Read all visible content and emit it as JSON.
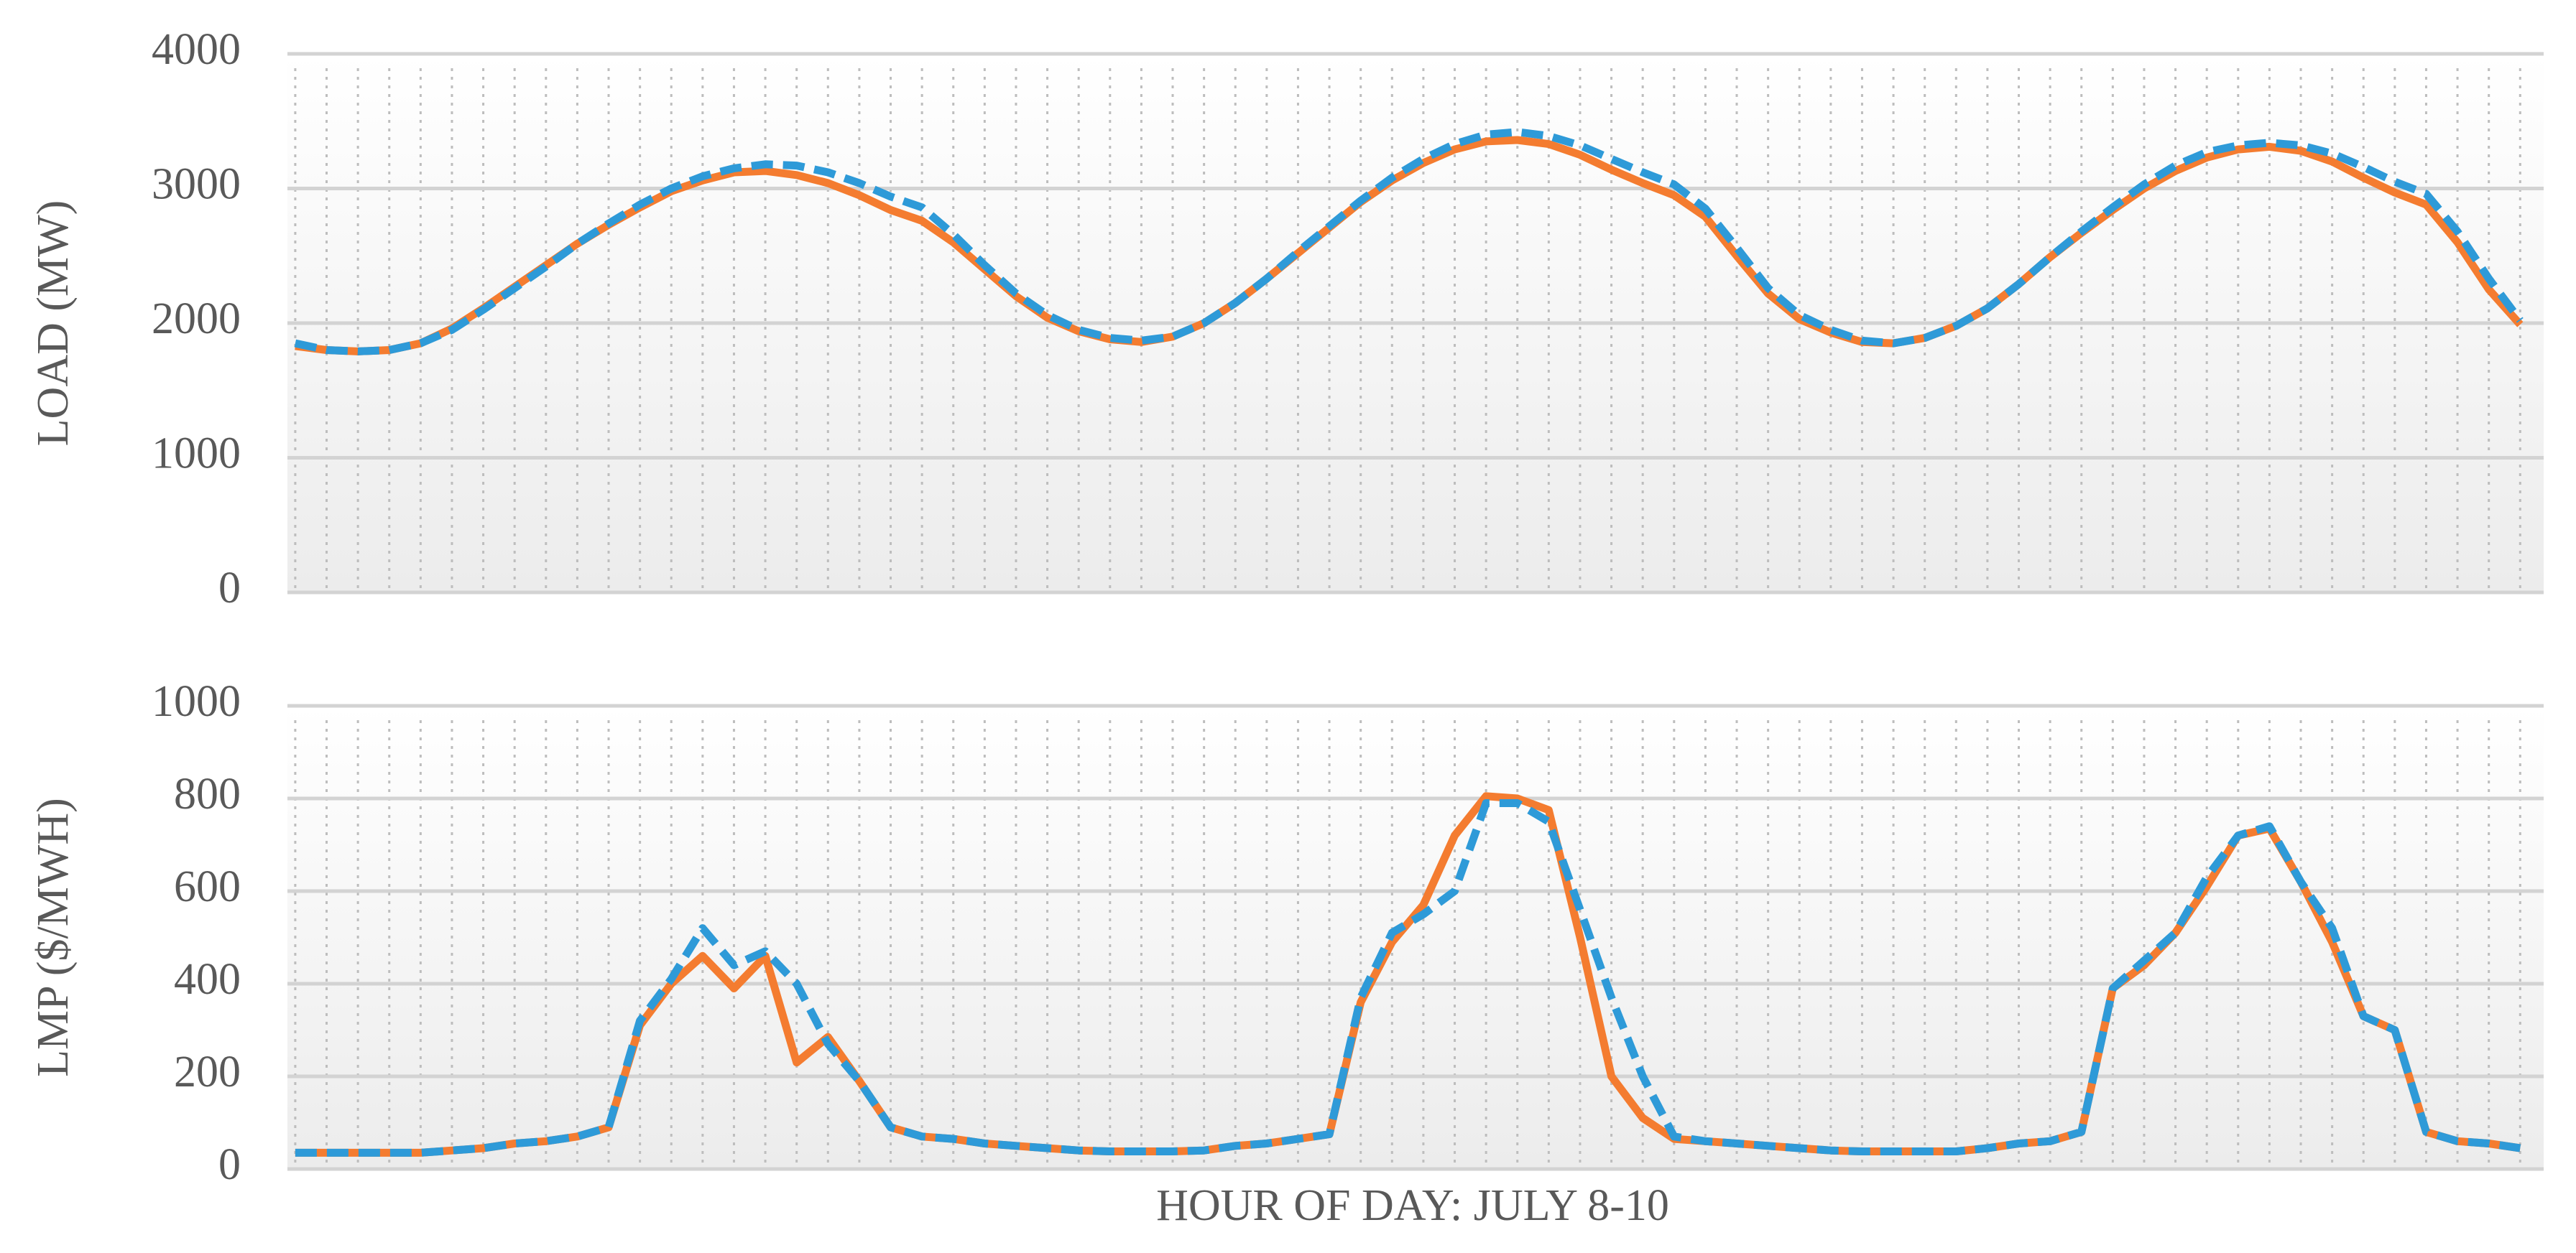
{
  "chart_data": [
    {
      "type": "line",
      "ylabel": "LOAD (MW)",
      "ylim": [
        0,
        4000
      ],
      "yticks": [
        0,
        1000,
        2000,
        3000,
        4000
      ],
      "grid": true,
      "series": [
        {
          "color": "#f47c30",
          "dash": false,
          "values": [
            1830,
            1800,
            1790,
            1800,
            1850,
            1960,
            2110,
            2270,
            2430,
            2590,
            2730,
            2860,
            2980,
            3060,
            3120,
            3130,
            3100,
            3040,
            2950,
            2840,
            2760,
            2600,
            2400,
            2200,
            2040,
            1940,
            1880,
            1860,
            1900,
            2000,
            2150,
            2330,
            2520,
            2710,
            2900,
            3060,
            3190,
            3290,
            3350,
            3360,
            3330,
            3250,
            3140,
            3040,
            2950,
            2790,
            2500,
            2220,
            2030,
            1930,
            1860,
            1850,
            1890,
            1980,
            2110,
            2290,
            2490,
            2670,
            2840,
            3000,
            3130,
            3230,
            3290,
            3310,
            3280,
            3200,
            3080,
            2970,
            2880,
            2600,
            2250,
            1990
          ]
        },
        {
          "color": "#2e9ad8",
          "dash": true,
          "values": [
            1850,
            1800,
            1790,
            1800,
            1850,
            1950,
            2100,
            2260,
            2420,
            2590,
            2740,
            2880,
            3000,
            3090,
            3150,
            3180,
            3170,
            3120,
            3040,
            2940,
            2860,
            2660,
            2430,
            2220,
            2060,
            1950,
            1890,
            1870,
            1900,
            2000,
            2150,
            2330,
            2530,
            2720,
            2910,
            3080,
            3220,
            3330,
            3400,
            3420,
            3390,
            3320,
            3220,
            3120,
            3030,
            2850,
            2560,
            2260,
            2060,
            1950,
            1870,
            1850,
            1890,
            1980,
            2110,
            2290,
            2490,
            2680,
            2860,
            3030,
            3170,
            3270,
            3320,
            3340,
            3320,
            3260,
            3160,
            3050,
            2960,
            2680,
            2330,
            2020
          ]
        }
      ]
    },
    {
      "type": "line",
      "ylabel": "LMP ($/MWH)",
      "xlabel": "HOUR OF DAY: JULY 8-10",
      "ylim": [
        0,
        1000
      ],
      "yticks": [
        0,
        200,
        400,
        600,
        800,
        1000
      ],
      "grid": true,
      "series": [
        {
          "color": "#f47c30",
          "dash": false,
          "values": [
            35,
            35,
            35,
            35,
            35,
            40,
            45,
            55,
            60,
            70,
            90,
            310,
            400,
            460,
            390,
            460,
            230,
            285,
            190,
            90,
            70,
            65,
            55,
            50,
            45,
            40,
            38,
            38,
            38,
            40,
            50,
            55,
            65,
            75,
            360,
            490,
            570,
            720,
            805,
            800,
            775,
            500,
            200,
            110,
            65,
            60,
            55,
            50,
            45,
            40,
            38,
            38,
            38,
            38,
            45,
            55,
            60,
            80,
            390,
            440,
            510,
            610,
            720,
            735,
            620,
            490,
            330,
            300,
            80,
            60,
            55,
            45
          ]
        },
        {
          "color": "#2e9ad8",
          "dash": true,
          "values": [
            35,
            35,
            35,
            35,
            35,
            40,
            45,
            55,
            60,
            70,
            90,
            320,
            410,
            520,
            440,
            470,
            400,
            270,
            190,
            90,
            70,
            65,
            55,
            50,
            45,
            40,
            38,
            38,
            38,
            40,
            50,
            55,
            65,
            75,
            370,
            510,
            550,
            600,
            790,
            790,
            750,
            560,
            370,
            200,
            70,
            60,
            55,
            50,
            45,
            40,
            38,
            38,
            38,
            38,
            45,
            55,
            60,
            80,
            390,
            450,
            510,
            630,
            720,
            740,
            620,
            520,
            330,
            300,
            80,
            60,
            55,
            45
          ]
        }
      ]
    }
  ]
}
